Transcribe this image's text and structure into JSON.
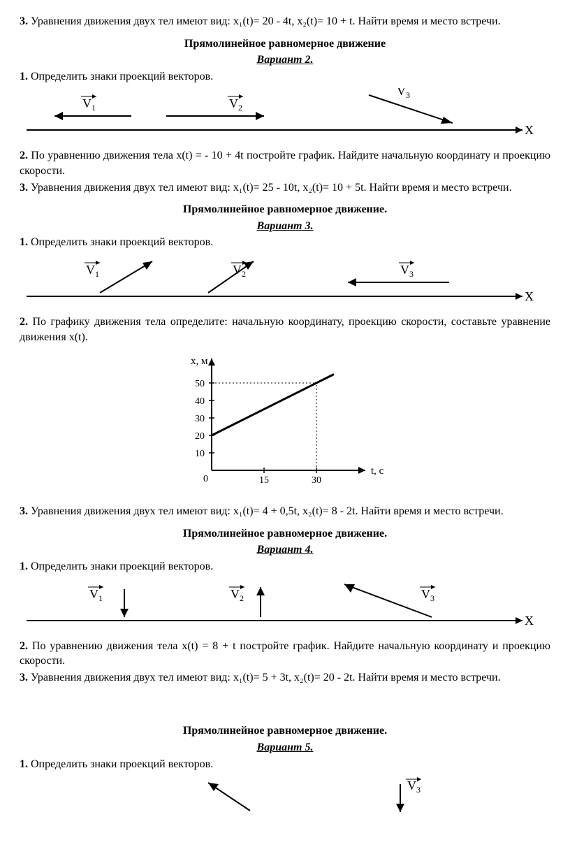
{
  "q3_top": "Уравнения движения двух тел имеют вид: x₁(t)= 20 - 4t,  x₂(t)= 10 + t. Найти время и место встречи.",
  "labels": {
    "V1": "V₁",
    "V2": "V₂",
    "V3": "V₃",
    "X": "Х"
  },
  "section_title": "Прямолинейное равномерное движение",
  "section_title_dot": "Прямолинейное равномерное движение.",
  "v2": {
    "variant": "Вариант 2.",
    "q1": "Определить знаки проекций векторов.",
    "q2": "По уравнению движения тела x(t) = - 10 + 4t постройте график. Найдите начальную координату и проекцию скорости.",
    "q3": "Уравнения движения двух тел имеют вид:  x₁(t)= 25 - 10t,  x₂(t)= 10 + 5t. Найти время и место встречи."
  },
  "v3": {
    "variant": "Вариант 3.",
    "q1": "Определить знаки проекций векторов.",
    "q2": "По графику движения тела определите: начальную координату, проекцию скорости, составьте уравнение движения x(t).",
    "q3_after": "Уравнения движения двух тел имеют вид: x₁(t)= 4 + 0,5t,  x₂(t)= 8 - 2t. Найти время и место встречи."
  },
  "v4": {
    "variant": "Вариант 4.",
    "q1": "Определить знаки проекций векторов.",
    "q2": "По уравнению движения тела x(t) = 8 + t постройте график. Найдите начальную координату и проекцию скорости.",
    "q3": "Уравнения движения двух тел имеют вид: x₁(t)= 5 + 3t,  x₂(t)= 20 - 2t. Найти время и место встречи."
  },
  "v5": {
    "variant": "Вариант 5.",
    "q1": "Определить знаки проекций векторов."
  },
  "chart": {
    "type": "line",
    "ylabel": "x, м",
    "xlabel": "t, c",
    "xticks": [
      15,
      30
    ],
    "yticks": [
      10,
      20,
      30,
      40,
      50
    ],
    "origin_label": "0",
    "line_points": [
      [
        0,
        20
      ],
      [
        30,
        50
      ]
    ],
    "xlim": [
      0,
      40
    ],
    "ylim": [
      0,
      60
    ],
    "ytick_fontsize": 14,
    "background_color": "#ffffff",
    "line_width": 2,
    "axis_width": 2,
    "grid_dash": "2,3",
    "colors": {
      "axis": "#000000",
      "line": "#000000",
      "grid": "#000000"
    }
  }
}
